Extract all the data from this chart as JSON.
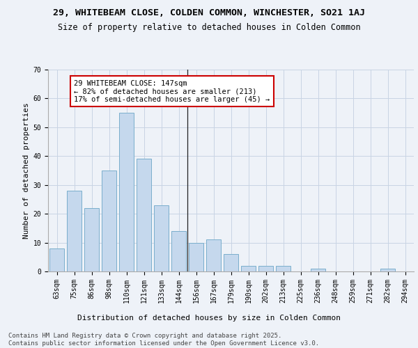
{
  "title1": "29, WHITEBEAM CLOSE, COLDEN COMMON, WINCHESTER, SO21 1AJ",
  "title2": "Size of property relative to detached houses in Colden Common",
  "xlabel": "Distribution of detached houses by size in Colden Common",
  "ylabel": "Number of detached properties",
  "categories": [
    "63sqm",
    "75sqm",
    "86sqm",
    "98sqm",
    "110sqm",
    "121sqm",
    "133sqm",
    "144sqm",
    "156sqm",
    "167sqm",
    "179sqm",
    "190sqm",
    "202sqm",
    "213sqm",
    "225sqm",
    "236sqm",
    "248sqm",
    "259sqm",
    "271sqm",
    "282sqm",
    "294sqm"
  ],
  "values": [
    8,
    28,
    22,
    35,
    55,
    39,
    23,
    14,
    10,
    11,
    6,
    2,
    2,
    2,
    0,
    1,
    0,
    0,
    0,
    1,
    0
  ],
  "bar_color": "#c5d8ed",
  "bar_edge_color": "#7aaecc",
  "ylim": [
    0,
    70
  ],
  "yticks": [
    0,
    10,
    20,
    30,
    40,
    50,
    60,
    70
  ],
  "annotation_text": "29 WHITEBEAM CLOSE: 147sqm\n← 82% of detached houses are smaller (213)\n17% of semi-detached houses are larger (45) →",
  "vline_x": 7.5,
  "annotation_box_edge_color": "#cc0000",
  "background_color": "#eef2f8",
  "footer_text": "Contains HM Land Registry data © Crown copyright and database right 2025.\nContains public sector information licensed under the Open Government Licence v3.0.",
  "title1_fontsize": 9.5,
  "title2_fontsize": 8.5,
  "xlabel_fontsize": 8,
  "ylabel_fontsize": 8,
  "tick_fontsize": 7,
  "annotation_fontsize": 7.5,
  "footer_fontsize": 6.5
}
